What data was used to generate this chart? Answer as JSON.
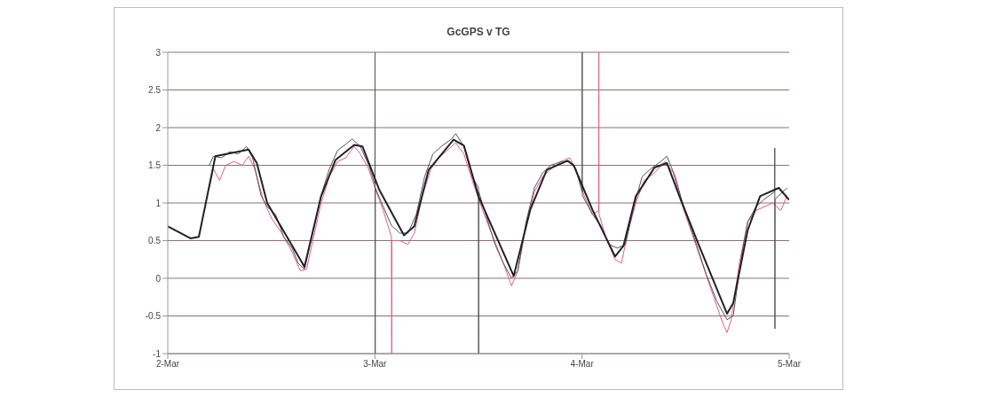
{
  "chart_data": {
    "type": "line",
    "title": "GcGPS v TG",
    "xlim": [
      "--03-02",
      "--03-05"
    ],
    "xticks": [
      {
        "value": "--03-02",
        "label": "2-Mar"
      },
      {
        "value": "--03-03",
        "label": "3-Mar"
      },
      {
        "value": "--03-04",
        "label": "4-Mar"
      },
      {
        "value": "--03-05",
        "label": "5-Mar"
      }
    ],
    "ylim": [
      -1,
      3
    ],
    "yticks": [
      -1,
      -0.5,
      0,
      0.5,
      1,
      1.5,
      2,
      2.5,
      3
    ],
    "grid": "y",
    "legend": false,
    "series": [
      {
        "color": "#e0607a",
        "x": [
          "--03-02T04:48",
          "--03-02T05:17",
          "--03-02T06:00",
          "--03-02T06:43",
          "--03-02T07:41",
          "--03-02T08:38",
          "--03-02T09:22",
          "--03-02T10:05",
          "--03-02T11:02",
          "--03-02T12:00",
          "--03-02T13:12",
          "--03-02T14:24",
          "--03-02T15:22",
          "--03-02T16:05",
          "--03-02T16:48",
          "--03-02T17:46",
          "--03-02T18:43",
          "--03-02T19:41",
          "--03-02T20:38",
          "--03-02T21:36",
          "--03-02T22:19",
          "--03-02T23:17",
          "--03-03T00:00",
          "--03-03T00:58",
          "--03-03T01:55",
          "--03-03T01:57",
          "--03-03T01:58",
          "--03-03T02:53",
          "--03-03T03:50",
          "--03-03T04:34",
          "--03-03T05:31",
          "--03-03T06:29",
          "--03-03T07:26",
          "--03-03T08:24",
          "--03-03T09:22",
          "--03-03T10:19",
          "--03-03T11:17",
          "--03-03T12:29",
          "--03-03T13:41",
          "--03-03T14:53",
          "--03-03T15:50",
          "--03-03T16:34",
          "--03-03T17:31",
          "--03-03T18:29",
          "--03-03T19:26",
          "--03-03T20:24",
          "--03-03T21:36",
          "--03-03T22:34",
          "--03-03T23:17",
          "--03-04T00:14",
          "--03-04T01:12",
          "--03-04T01:55",
          "--03-04T01:57",
          "--03-04T01:58",
          "--03-04T02:53",
          "--03-04T03:50",
          "--03-04T04:34",
          "--03-04T05:17",
          "--03-04T06:14",
          "--03-04T07:12",
          "--03-04T08:24",
          "--03-04T09:36",
          "--03-04T10:34",
          "--03-04T11:31",
          "--03-04T12:43",
          "--03-04T13:55",
          "--03-04T15:07",
          "--03-04T16:19",
          "--03-04T16:48",
          "--03-04T17:17",
          "--03-04T18:14",
          "--03-04T19:12",
          "--03-04T20:10",
          "--03-04T21:07",
          "--03-04T22:05",
          "--03-04T23:02",
          "--03-04T23:46"
        ],
        "values": [
          1.2,
          1.45,
          1.3,
          1.5,
          1.55,
          1.5,
          1.62,
          1.45,
          1.05,
          0.8,
          0.6,
          0.35,
          0.1,
          0.12,
          0.5,
          1.0,
          1.35,
          1.55,
          1.6,
          1.75,
          1.65,
          1.45,
          1.2,
          0.9,
          0.55,
          -1,
          0.5,
          0.5,
          0.45,
          0.6,
          1.1,
          1.45,
          1.6,
          1.7,
          1.8,
          1.65,
          1.3,
          0.9,
          0.55,
          0.2,
          -0.1,
          0.1,
          0.7,
          1.15,
          1.35,
          1.45,
          1.55,
          1.6,
          1.45,
          1.1,
          0.85,
          0.9,
          3,
          0.85,
          0.5,
          0.25,
          0.2,
          0.6,
          1.0,
          1.3,
          1.4,
          1.55,
          1.4,
          1.0,
          0.6,
          0.2,
          -0.2,
          -0.6,
          -0.72,
          -0.55,
          0.2,
          0.75,
          0.9,
          0.95,
          1.0,
          0.9,
          1.1
        ]
      },
      {
        "color": "#555555",
        "x": [
          "--03-02T04:48",
          "--03-02T05:17",
          "--03-02T06:14",
          "--03-02T07:12",
          "--03-02T08:10",
          "--03-02T09:07",
          "--03-02T09:50",
          "--03-02T10:48",
          "--03-02T11:31",
          "--03-02T12:29",
          "--03-02T13:26",
          "--03-02T14:24",
          "--03-02T15:07",
          "--03-02T15:50",
          "--03-02T16:48",
          "--03-02T17:46",
          "--03-02T18:43",
          "--03-02T19:41",
          "--03-02T20:38",
          "--03-02T21:22",
          "--03-02T22:19",
          "--03-02T23:17",
          "--03-03T00:00",
          "--03-03T00:01",
          "--03-03T00:02",
          "--03-03T00:03",
          "--03-03T00:58",
          "--03-03T01:55",
          "--03-03T02:53",
          "--03-03T03:50",
          "--03-03T04:48",
          "--03-03T05:46",
          "--03-03T06:43",
          "--03-03T07:41",
          "--03-03T08:53",
          "--03-03T09:22",
          "--03-03T10:19",
          "--03-03T11:17",
          "--03-03T12:00",
          "--03-03T12:01",
          "--03-03T12:02",
          "--03-03T12:58",
          "--03-03T13:55",
          "--03-03T14:53",
          "--03-03T15:50",
          "--03-03T16:34",
          "--03-03T17:31",
          "--03-03T18:29",
          "--03-03T19:26",
          "--03-03T20:24",
          "--03-03T21:36",
          "--03-03T22:34",
          "--03-03T23:17",
          "--03-04T00:00",
          "--03-04T00:01",
          "--03-04T00:02",
          "--03-04T01:12",
          "--03-04T02:10",
          "--03-04T03:07",
          "--03-04T04:05",
          "--03-04T05:02",
          "--03-04T06:00",
          "--03-04T06:58",
          "--03-04T07:55",
          "--03-04T09:07",
          "--03-04T09:50",
          "--03-04T10:48",
          "--03-04T11:46",
          "--03-04T12:58",
          "--03-04T14:24",
          "--03-04T15:36",
          "--03-04T16:48",
          "--03-04T17:31",
          "--03-04T18:29",
          "--03-04T19:12",
          "--03-04T20:10",
          "--03-04T21:07",
          "--03-04T22:19",
          "--03-04T22:20",
          "--03-04T22:21",
          "--03-04T22:22",
          "--03-04T23:17",
          "--03-04T23:46"
        ],
        "values": [
          1.5,
          1.62,
          1.6,
          1.68,
          1.65,
          1.75,
          1.6,
          1.1,
          0.95,
          0.85,
          0.55,
          0.4,
          0.2,
          0.12,
          0.6,
          1.1,
          1.45,
          1.7,
          1.78,
          1.85,
          1.75,
          1.5,
          1.25,
          3,
          -1,
          1.2,
          0.95,
          0.7,
          0.6,
          0.6,
          0.85,
          1.35,
          1.65,
          1.75,
          1.85,
          1.92,
          1.75,
          1.35,
          1.2,
          -1,
          1.15,
          0.8,
          0.45,
          0.2,
          0.0,
          0.1,
          0.75,
          1.2,
          1.4,
          1.5,
          1.55,
          1.55,
          1.45,
          1.15,
          3,
          1.1,
          0.85,
          0.7,
          0.45,
          0.4,
          0.45,
          0.95,
          1.35,
          1.45,
          1.55,
          1.62,
          1.35,
          0.95,
          0.55,
          0.05,
          -0.3,
          -0.55,
          -0.5,
          0.3,
          0.75,
          0.95,
          1.05,
          1.15,
          1.73,
          -0.67,
          1.05,
          1.15,
          1.2
        ]
      },
      {
        "color": "#222222",
        "x": [
          "--03-02T00:00",
          "--03-02T02:38",
          "--03-02T03:36",
          "--03-02T05:31",
          "--03-02T09:22",
          "--03-02T10:19",
          "--03-02T11:31",
          "--03-02T15:36",
          "--03-02T15:50",
          "--03-02T17:46",
          "--03-02T19:26",
          "--03-02T21:36",
          "--03-02T22:34",
          "--03-03T00:29",
          "--03-03T03:22",
          "--03-03T04:34",
          "--03-03T06:14",
          "--03-03T09:07",
          "--03-03T10:19",
          "--03-03T12:00",
          "--03-03T16:05",
          "--03-03T18:00",
          "--03-03T19:55",
          "--03-03T22:19",
          "--03-03T23:02",
          "--03-04T01:12",
          "--03-04T03:50",
          "--03-04T04:48",
          "--03-04T06:14",
          "--03-04T08:24",
          "--03-04T09:50",
          "--03-04T11:17",
          "--03-04T13:26",
          "--03-04T16:48",
          "--03-04T17:31",
          "--03-04T19:12",
          "--03-04T20:38",
          "--03-04T22:48",
          "--03-05T00:00"
        ],
        "values": [
          0.69,
          0.53,
          0.55,
          1.62,
          1.71,
          1.53,
          1.0,
          0.2,
          0.15,
          1.09,
          1.57,
          1.77,
          1.75,
          1.18,
          0.57,
          0.69,
          1.44,
          1.84,
          1.76,
          1.09,
          0.03,
          0.91,
          1.44,
          1.56,
          1.5,
          0.91,
          0.29,
          0.43,
          1.09,
          1.47,
          1.53,
          1.09,
          0.47,
          -0.47,
          -0.33,
          0.64,
          1.09,
          1.2,
          1.04
        ]
      }
    ]
  }
}
